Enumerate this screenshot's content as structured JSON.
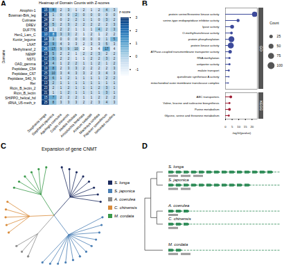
{
  "chart_data": [
    {
      "type": "heatmap",
      "panel": "A",
      "title": "Heatmap of Domain Counts with Z-scores",
      "y_label": "Domains",
      "x": [
        "Stephania longa",
        "Stephania japonica",
        "Aquilegia coerulea",
        "Coptis chinensis",
        "Akebia trifoliata",
        "Aristolochia fimbriata",
        "Asarum sieboldii",
        "Macleaya cordata",
        "Papaver somniferum",
        "Nelumbo nucifera"
      ],
      "y": [
        "Atrophin-1",
        "Bowman-Birk_leg",
        "Cutinase",
        "DREV",
        "DUF776",
        "Hen1_Lam_C",
        "Kunitz_legume",
        "LNAT",
        "Methyltransf_2",
        "NEMP",
        "NST1",
        "OAD_gamma",
        "Peptidase_C54",
        "Peptidase_C67",
        "Peptidase_S40_N",
        "Rer",
        "Ricin_B_lectin_2",
        "Ricin_B_lectin",
        "SHIPPO_helical_hd",
        "tRNA_U5-meth_tr"
      ],
      "counts": [
        [
          15,
          8,
          2,
          3,
          1,
          2,
          1,
          2,
          4,
          3
        ],
        [
          16,
          1,
          0,
          0,
          2,
          0,
          0,
          0,
          0,
          0
        ],
        [
          24,
          2,
          0,
          2,
          2,
          1,
          1,
          0,
          3,
          2
        ],
        [
          20,
          5,
          2,
          3,
          2,
          2,
          2,
          2,
          2,
          3
        ],
        [
          15,
          1,
          2,
          2,
          1,
          1,
          1,
          4,
          2,
          3
        ],
        [
          10,
          8,
          3,
          3,
          2,
          1,
          2,
          1,
          2,
          2
        ],
        [
          14,
          3,
          0,
          0,
          0,
          0,
          0,
          0,
          1,
          5
        ],
        [
          20,
          9,
          4,
          3,
          3,
          2,
          3,
          3,
          5,
          3
        ],
        [
          26,
          17,
          9,
          9,
          10,
          2,
          3,
          4,
          17,
          4
        ],
        [
          15,
          5,
          2,
          2,
          1,
          2,
          2,
          3,
          2,
          2
        ],
        [
          12,
          5,
          2,
          2,
          1,
          1,
          2,
          2,
          3,
          2
        ],
        [
          14,
          4,
          1,
          2,
          2,
          1,
          1,
          2,
          1,
          2
        ],
        [
          19,
          8,
          2,
          3,
          3,
          2,
          2,
          2,
          2,
          3
        ],
        [
          25,
          10,
          3,
          4,
          3,
          3,
          2,
          3,
          4,
          3
        ],
        [
          20,
          6,
          1,
          2,
          1,
          1,
          1,
          1,
          2,
          2
        ],
        [
          13,
          2,
          1,
          1,
          1,
          1,
          1,
          1,
          1,
          1
        ],
        [
          23,
          2,
          1,
          2,
          1,
          1,
          1,
          2,
          3,
          1
        ],
        [
          21,
          1,
          1,
          2,
          1,
          1,
          1,
          1,
          3,
          1
        ],
        [
          15,
          7,
          2,
          2,
          2,
          1,
          1,
          2,
          2,
          2
        ],
        [
          25,
          8,
          3,
          3,
          3,
          2,
          2,
          3,
          4,
          3
        ]
      ],
      "z_scores": [
        [
          2.6,
          0.9,
          -0.5,
          -0.3,
          -0.7,
          -0.5,
          -0.7,
          -0.5,
          0.0,
          -0.3
        ],
        [
          3.0,
          -0.2,
          -0.4,
          -0.4,
          0.0,
          -0.4,
          -0.4,
          -0.4,
          -0.4,
          -0.4
        ],
        [
          3.0,
          -0.3,
          -0.5,
          -0.3,
          -0.3,
          -0.4,
          -0.4,
          -0.5,
          -0.1,
          -0.3
        ],
        [
          3.0,
          0.1,
          -0.4,
          -0.2,
          -0.4,
          -0.4,
          -0.4,
          -0.4,
          -0.4,
          -0.2
        ],
        [
          2.9,
          -0.6,
          -0.3,
          -0.3,
          -0.6,
          -0.6,
          -0.6,
          0.2,
          -0.3,
          0.0
        ],
        [
          2.2,
          1.5,
          -0.1,
          -0.1,
          -0.5,
          -0.8,
          -0.5,
          -0.8,
          -0.5,
          -0.5
        ],
        [
          2.7,
          0.2,
          -0.5,
          -0.5,
          -0.5,
          -0.5,
          -0.5,
          -0.5,
          -0.3,
          0.6
        ],
        [
          2.7,
          0.7,
          -0.3,
          -0.5,
          -0.5,
          -0.7,
          -0.5,
          -0.5,
          -0.1,
          -0.5
        ],
        [
          2.1,
          0.9,
          -0.1,
          -0.1,
          0.0,
          -1.1,
          -0.9,
          -0.8,
          0.9,
          -0.8
        ],
        [
          2.9,
          0.4,
          -0.4,
          -0.4,
          -0.7,
          -0.4,
          -0.4,
          -0.2,
          -0.4,
          -0.4
        ],
        [
          2.8,
          0.6,
          -0.4,
          -0.4,
          -0.7,
          -0.7,
          -0.4,
          -0.4,
          -0.1,
          -0.4
        ],
        [
          2.9,
          0.3,
          -0.5,
          -0.3,
          -0.3,
          -0.5,
          -0.5,
          -0.3,
          -0.5,
          -0.3
        ],
        [
          2.8,
          0.7,
          -0.5,
          -0.3,
          -0.3,
          -0.5,
          -0.5,
          -0.5,
          -0.5,
          -0.3
        ],
        [
          2.8,
          0.6,
          -0.4,
          -0.3,
          -0.4,
          -0.4,
          -0.6,
          -0.4,
          -0.3,
          -0.4
        ],
        [
          2.9,
          0.4,
          -0.5,
          -0.3,
          -0.5,
          -0.5,
          -0.5,
          -0.5,
          -0.3,
          -0.3
        ],
        [
          3.0,
          0.0,
          -0.4,
          -0.4,
          -0.4,
          -0.4,
          -0.4,
          -0.4,
          -0.4,
          -0.4
        ],
        [
          3.0,
          -0.3,
          -0.4,
          -0.3,
          -0.4,
          -0.4,
          -0.4,
          -0.3,
          -0.1,
          -0.4
        ],
        [
          3.0,
          -0.4,
          -0.4,
          -0.2,
          -0.4,
          -0.4,
          -0.4,
          -0.4,
          0.0,
          -0.4
        ],
        [
          2.7,
          0.8,
          -0.4,
          -0.4,
          -0.4,
          -0.6,
          -0.6,
          -0.4,
          -0.4,
          -0.4
        ],
        [
          2.9,
          0.4,
          -0.4,
          -0.4,
          -0.4,
          -0.5,
          -0.5,
          -0.4,
          -0.2,
          -0.4
        ]
      ],
      "colorbar": {
        "label": "z-score",
        "range": [
          -1.5,
          3
        ],
        "ticks": [
          -1,
          0,
          1,
          2,
          3
        ]
      },
      "data_labels": true
    },
    {
      "type": "lollipop",
      "panel": "B",
      "x_label": "-log10(pvalue)",
      "xlim": [
        0,
        24
      ],
      "xticks": [
        0,
        5,
        10,
        15,
        20
      ],
      "series": [
        {
          "name": "GO",
          "color": "#3d4a9b",
          "categories": [
            "protein serine/threonine kinase activity",
            "serine-type endopeptidase inhibitor activity",
            "lyase activity",
            "O-methyltransferase activity",
            "protein phosphorylation",
            "protein kinase activity",
            "ATPase-coupled transmembrane transporter activity",
            "RNA methylation",
            "antiporter activity",
            "malate transport",
            "quinolinate synthetase A activity",
            "mitochondrial outer membrane translocase complex"
          ],
          "values": [
            22,
            9.5,
            5,
            4.5,
            4.5,
            4,
            3.5,
            3,
            3,
            2.5,
            2.5,
            2
          ],
          "counts": [
            60,
            20,
            30,
            15,
            70,
            75,
            25,
            10,
            10,
            8,
            5,
            5
          ]
        },
        {
          "name": "KEGG",
          "color": "#9e1b32",
          "categories": [
            "ABC transporters",
            "Valine, leucine and isoleucine biosynthesis",
            "Purine metabolism",
            "Glycine, serine and threonine metabolism"
          ],
          "values": [
            4,
            3,
            3,
            2.5
          ],
          "counts": [
            15,
            8,
            15,
            8
          ]
        }
      ],
      "size_legend": {
        "label": "Count",
        "values": [
          25,
          50,
          75,
          100
        ]
      }
    }
  ],
  "tree": {
    "panel": "C",
    "title": "Expansion of gene CNMT",
    "species": [
      {
        "name": "S. longa",
        "color": "#1b2a5e",
        "leaves": 8
      },
      {
        "name": "S. japonica",
        "color": "#4a7fb5",
        "leaves": 12
      },
      {
        "name": "A. coerulea",
        "color": "#8a8a8a",
        "leaves": 3
      },
      {
        "name": "C. chinensis",
        "color": "#d98b3a",
        "leaves": 5
      },
      {
        "name": "M. cordata",
        "color": "#3a9a4a",
        "leaves": 6
      }
    ]
  },
  "gene_clusters": {
    "panel": "D",
    "gene_color": "#2e8b57",
    "scaffold_color": "#9a9a9a",
    "topology": [
      [
        [
          0,
          1
        ],
        [
          2,
          3
        ]
      ],
      4
    ],
    "species": [
      {
        "name": "S. longa",
        "genes": 14,
        "scaffolds": 3
      },
      {
        "name": "S. japonica",
        "genes": 11,
        "scaffolds": 2
      },
      {
        "name": "A. coerulea",
        "genes": 3,
        "scaffolds": 1
      },
      {
        "name": "C. chinensis",
        "genes": 3,
        "scaffolds": 1
      },
      {
        "name": "M. cordata",
        "genes": 2,
        "scaffolds": 2
      }
    ]
  }
}
